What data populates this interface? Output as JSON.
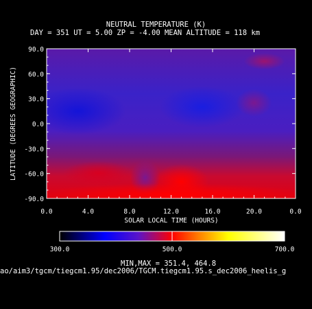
{
  "chart_data": {
    "type": "heatmap",
    "title": "NEUTRAL TEMPERATURE (K)",
    "subtitle": "DAY = 351   UT =  5.00  ZP =  -4.00  MEAN ALTITUDE = 118 km",
    "xlabel": "SOLAR LOCAL TIME (HOURS)",
    "ylabel": "LATITUDE (DEGREES GEOGRAPHIC)",
    "xlim": [
      0,
      24
    ],
    "ylim": [
      -90,
      90
    ],
    "x_ticks": [
      "0.0",
      "4.0",
      "8.0",
      "12.0",
      "16.0",
      "20.0",
      "0.0"
    ],
    "y_ticks": [
      "90.0",
      "60.0",
      "30.0",
      "0.0",
      "-30.0",
      "-60.0",
      "-90.0"
    ],
    "colorbar": {
      "range": [
        300,
        700
      ],
      "tick_labels": [
        "300.0",
        "500.0",
        "700.0"
      ],
      "colors": [
        "#000000",
        "#0000ff",
        "#5a14c8",
        "#ff0000",
        "#ff8000",
        "#ffff00",
        "#ffffff"
      ]
    },
    "min": 351.4,
    "max": 464.8,
    "features": [
      {
        "lt": 3.0,
        "lat": 15,
        "value": 352
      },
      {
        "lt": 15.0,
        "lat": 20,
        "value": 355
      },
      {
        "lt": 20.0,
        "lat": 25,
        "value": 395
      },
      {
        "lt": 21.0,
        "lat": 75,
        "value": 425
      },
      {
        "lt": 13.0,
        "lat": -70,
        "value": 465
      },
      {
        "lt": 5.0,
        "lat": -60,
        "value": 440
      },
      {
        "lt": 9.5,
        "lat": -65,
        "value": 375
      },
      {
        "lt": 12.0,
        "lat": -85,
        "value": 460
      }
    ]
  },
  "footer": {
    "minmax": "MIN,MAX =        351.4,      464.8",
    "path": "ao/aim3/tgcm/tiegcm1.95/dec2006/TGCM.tiegcm1.95.s_dec2006_heelis_g"
  }
}
